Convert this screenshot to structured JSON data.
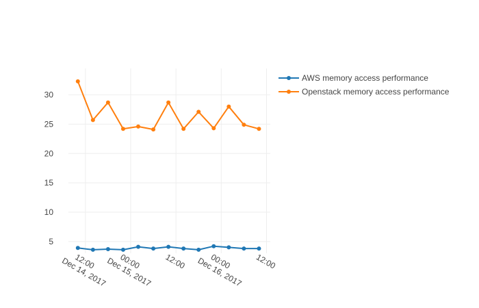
{
  "chart_data": {
    "type": "line",
    "title": "",
    "xlabel": "",
    "ylabel": "",
    "x_range": [
      "2017-12-14T07:30",
      "2017-12-16T13:00"
    ],
    "ylim": [
      3.0,
      34.5
    ],
    "grid": true,
    "legend_position": "top-right",
    "y_ticks": [
      {
        "value": 5,
        "label": "5"
      },
      {
        "value": 10,
        "label": "10"
      },
      {
        "value": 15,
        "label": "15"
      },
      {
        "value": 20,
        "label": "20"
      },
      {
        "value": 25,
        "label": "25"
      },
      {
        "value": 30,
        "label": "30"
      }
    ],
    "x_ticks": [
      {
        "value": "2017-12-14T12:00",
        "lines": [
          "12:00",
          "Dec 14, 2017"
        ]
      },
      {
        "value": "2017-12-15T00:00",
        "lines": [
          "00:00",
          "Dec 15, 2017"
        ]
      },
      {
        "value": "2017-12-15T12:00",
        "lines": [
          "12:00"
        ]
      },
      {
        "value": "2017-12-16T00:00",
        "lines": [
          "00:00",
          "Dec 16, 2017"
        ]
      },
      {
        "value": "2017-12-16T12:00",
        "lines": [
          "12:00"
        ]
      }
    ],
    "x": [
      "2017-12-14T10:00",
      "2017-12-14T14:00",
      "2017-12-14T18:00",
      "2017-12-14T22:00",
      "2017-12-15T02:00",
      "2017-12-15T06:00",
      "2017-12-15T10:00",
      "2017-12-15T14:00",
      "2017-12-15T18:00",
      "2017-12-15T22:00",
      "2017-12-16T02:00",
      "2017-12-16T06:00",
      "2017-12-16T10:00"
    ],
    "series": [
      {
        "name": "AWS memory access performance",
        "color": "#1f77b4",
        "values": [
          3.9,
          3.6,
          3.7,
          3.6,
          4.1,
          3.8,
          4.1,
          3.8,
          3.6,
          4.2,
          4.0,
          3.8,
          3.8
        ]
      },
      {
        "name": "Openstack memory access performance",
        "color": "#ff7f0e",
        "values": [
          32.3,
          25.7,
          28.7,
          24.2,
          24.6,
          24.1,
          28.7,
          24.2,
          27.1,
          24.3,
          28.0,
          24.9,
          24.2
        ]
      }
    ]
  }
}
